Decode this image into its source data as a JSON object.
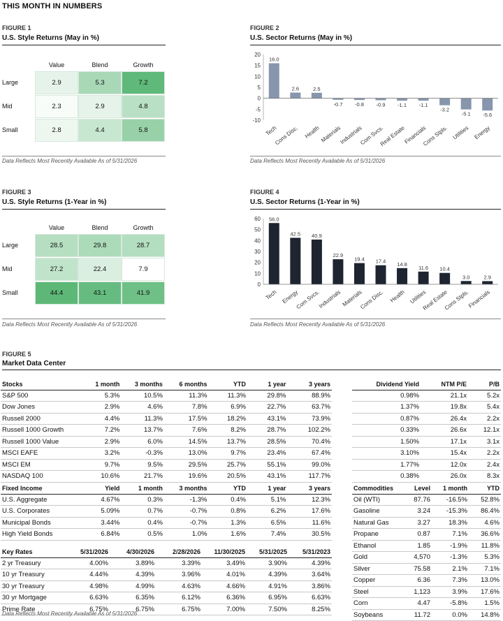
{
  "page_title": "THIS MONTH IN NUMBERS",
  "note": "Data Reflects Most Recently Available As of 5/31/2026",
  "fig1": {
    "num": "FIGURE 1",
    "title": "U.S. Style Returns (May in %)",
    "cols": [
      "Value",
      "Blend",
      "Growth"
    ],
    "rows": [
      "Large",
      "Mid",
      "Small"
    ],
    "values": [
      [
        "2.9",
        "5.3",
        "7.2"
      ],
      [
        "2.3",
        "2.9",
        "4.8"
      ],
      [
        "2.8",
        "4.4",
        "5.8"
      ]
    ],
    "shade": [
      [
        "#e6f3ea",
        "#a9d8b7",
        "#5fb97a"
      ],
      [
        "#f8fcf9",
        "#e6f3ea",
        "#b9e0c4"
      ],
      [
        "#edf7f0",
        "#c8e7d1",
        "#98d1a8"
      ]
    ]
  },
  "fig2": {
    "num": "FIGURE 2",
    "title": "U.S. Sector Returns (May in %)"
  },
  "fig3": {
    "num": "FIGURE 3",
    "title": "U.S. Style Returns (1-Year in %)",
    "cols": [
      "Value",
      "Blend",
      "Growth"
    ],
    "rows": [
      "Large",
      "Mid",
      "Small"
    ],
    "values": [
      [
        "28.5",
        "29.8",
        "28.7"
      ],
      [
        "27.2",
        "22.4",
        "7.9"
      ],
      [
        "44.4",
        "43.1",
        "41.9"
      ]
    ],
    "shade": [
      [
        "#b6dfc1",
        "#acdbb9",
        "#b3dec0"
      ],
      [
        "#c0e4ca",
        "#dbefe1",
        "#ffffff"
      ],
      [
        "#5db878",
        "#66bc80",
        "#6ec086"
      ]
    ]
  },
  "fig4": {
    "num": "FIGURE 4",
    "title": "U.S. Sector Returns (1-Year in %)"
  },
  "chart_data": [
    {
      "type": "bar",
      "title": "U.S. Sector Returns (May in %)",
      "categories": [
        "Tech",
        "Cons Disc.",
        "Health",
        "Materials",
        "Industrials",
        "Com Svcs.",
        "Real Estate",
        "Financials",
        "Cons Stpls.",
        "Utilities",
        "Energy"
      ],
      "values": [
        16.0,
        2.6,
        2.5,
        -0.7,
        -0.8,
        -0.9,
        -1.1,
        -1.1,
        -3.2,
        -5.1,
        -5.6
      ],
      "ylim": [
        -10,
        20
      ],
      "yticks": [
        20,
        15,
        10,
        5,
        0,
        -5,
        -10
      ],
      "color": "#8796ad"
    },
    {
      "type": "bar",
      "title": "U.S. Sector Returns (1-Year in %)",
      "categories": [
        "Tech",
        "Energy",
        "Com Svcs.",
        "Industrials",
        "Materials",
        "Cons Disc.",
        "Health",
        "Utilities",
        "Real Estate",
        "Cons Stpls.",
        "Financials"
      ],
      "values": [
        56.0,
        42.5,
        40.9,
        22.9,
        19.4,
        17.4,
        14.8,
        11.6,
        10.4,
        3.0,
        2.9
      ],
      "ylim": [
        0,
        60
      ],
      "yticks": [
        60,
        50,
        40,
        30,
        20,
        10,
        0
      ],
      "color": "#1e2530"
    }
  ],
  "fig5": {
    "num": "FIGURE 5",
    "title": "Market Data Center"
  },
  "stocks": {
    "headers": [
      "Stocks",
      "1 month",
      "3 months",
      "6 months",
      "YTD",
      "1 year",
      "3 years"
    ],
    "rows": [
      [
        "S&P 500",
        "5.3%",
        "10.5%",
        "11.3%",
        "11.3%",
        "29.8%",
        "88.9%"
      ],
      [
        "Dow Jones",
        "2.9%",
        "4.6%",
        "7.8%",
        "6.9%",
        "22.7%",
        "63.7%"
      ],
      [
        "Russell 2000",
        "4.4%",
        "11.3%",
        "17.5%",
        "18.2%",
        "43.1%",
        "73.9%"
      ],
      [
        "Russell 1000 Growth",
        "7.2%",
        "13.7%",
        "7.6%",
        "8.2%",
        "28.7%",
        "102.2%"
      ],
      [
        "Russell 1000 Value",
        "2.9%",
        "6.0%",
        "14.5%",
        "13.7%",
        "28.5%",
        "70.4%"
      ],
      [
        "MSCI EAFE",
        "3.2%",
        "-0.3%",
        "13.0%",
        "9.7%",
        "23.4%",
        "67.4%"
      ],
      [
        "MSCI EM",
        "9.7%",
        "9.5%",
        "29.5%",
        "25.7%",
        "55.1%",
        "99.0%"
      ],
      [
        "NASDAQ 100",
        "10.6%",
        "21.7%",
        "19.6%",
        "20.5%",
        "43.1%",
        "117.7%"
      ]
    ]
  },
  "valuation": {
    "headers": [
      "Dividend Yield",
      "NTM P/E",
      "P/B"
    ],
    "rows": [
      [
        "0.98%",
        "21.1x",
        "5.2x"
      ],
      [
        "1.37%",
        "19.8x",
        "5.4x"
      ],
      [
        "0.87%",
        "26.4x",
        "2.2x"
      ],
      [
        "0.33%",
        "26.6x",
        "12.1x"
      ],
      [
        "1.50%",
        "17.1x",
        "3.1x"
      ],
      [
        "3.10%",
        "15.4x",
        "2.2x"
      ],
      [
        "1.77%",
        "12.0x",
        "2.4x"
      ],
      [
        "0.38%",
        "26.0x",
        "8.3x"
      ]
    ]
  },
  "fixed_income": {
    "headers": [
      "Fixed Income",
      "Yield",
      "1 month",
      "3 months",
      "YTD",
      "1 year",
      "3 years"
    ],
    "rows": [
      [
        "U.S. Aggregate",
        "4.67%",
        "0.3%",
        "-1.3%",
        "0.4%",
        "5.1%",
        "12.3%"
      ],
      [
        "U.S. Corporates",
        "5.09%",
        "0.7%",
        "-0.7%",
        "0.8%",
        "6.2%",
        "17.6%"
      ],
      [
        "Municipal Bonds",
        "3.44%",
        "0.4%",
        "-0.7%",
        "1.3%",
        "6.5%",
        "11.6%"
      ],
      [
        "High Yield Bonds",
        "6.84%",
        "0.5%",
        "1.0%",
        "1.6%",
        "7.4%",
        "30.5%"
      ]
    ]
  },
  "key_rates": {
    "headers": [
      "Key Rates",
      "5/31/2026",
      "4/30/2026",
      "2/28/2026",
      "11/30/2025",
      "5/31/2025",
      "5/31/2023"
    ],
    "rows": [
      [
        "2 yr Treasury",
        "4.00%",
        "3.89%",
        "3.39%",
        "3.49%",
        "3.90%",
        "4.39%"
      ],
      [
        "10 yr Treasury",
        "4.44%",
        "4.39%",
        "3.96%",
        "4.01%",
        "4.39%",
        "3.64%"
      ],
      [
        "30 yr Treasury",
        "4.98%",
        "4.99%",
        "4.63%",
        "4.66%",
        "4.91%",
        "3.86%"
      ],
      [
        "30 yr Mortgage",
        "6.63%",
        "6.35%",
        "6.12%",
        "6.36%",
        "6.95%",
        "6.63%"
      ],
      [
        "Prime Rate",
        "6.75%",
        "6.75%",
        "6.75%",
        "7.00%",
        "7.50%",
        "8.25%"
      ]
    ]
  },
  "commodities": {
    "headers": [
      "Commodities",
      "Level",
      "1 month",
      "YTD"
    ],
    "rows": [
      [
        "Oil (WTI)",
        "87.76",
        "-16.5%",
        "52.8%"
      ],
      [
        "Gasoline",
        "3.24",
        "-15.3%",
        "86.4%"
      ],
      [
        "Natural Gas",
        "3.27",
        "18.3%",
        "4.6%"
      ],
      [
        "Propane",
        "0.87",
        "7.1%",
        "36.6%"
      ],
      [
        "Ethanol",
        "1.85",
        "-1.9%",
        "11.8%"
      ],
      [
        "Gold",
        "4,570",
        "-1.3%",
        "5.3%"
      ],
      [
        "Silver",
        "75.58",
        "2.1%",
        "7.1%"
      ],
      [
        "Copper",
        "6.36",
        "7.3%",
        "13.0%"
      ],
      [
        "Steel",
        "1,123",
        "3.9%",
        "17.6%"
      ],
      [
        "Corn",
        "4.47",
        "-5.8%",
        "1.5%"
      ],
      [
        "Soybeans",
        "11.72",
        "0.0%",
        "14.8%"
      ]
    ]
  }
}
